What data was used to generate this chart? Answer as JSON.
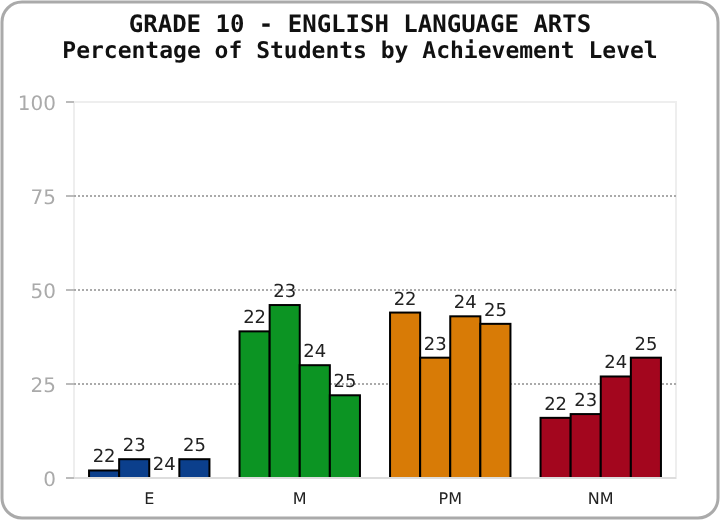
{
  "chart_data": {
    "type": "bar",
    "title": "GRADE 10 - ENGLISH LANGUAGE ARTS",
    "subtitle": "Percentage of Students by Achievement Level",
    "categories": [
      "E",
      "M",
      "PM",
      "NM"
    ],
    "series": [
      {
        "name": "22",
        "colors": [
          "#0b3f8c",
          "#0c9423",
          "#d87b06",
          "#a3061e"
        ],
        "values": [
          2,
          39,
          44,
          16
        ]
      },
      {
        "name": "23",
        "colors": [
          "#0b3f8c",
          "#0c9423",
          "#d87b06",
          "#a3061e"
        ],
        "values": [
          5,
          46,
          32,
          17
        ]
      },
      {
        "name": "24",
        "colors": [
          "#0b3f8c",
          "#0c9423",
          "#d87b06",
          "#a3061e"
        ],
        "values": [
          0,
          30,
          43,
          27
        ]
      },
      {
        "name": "25",
        "colors": [
          "#0b3f8c",
          "#0c9423",
          "#d87b06",
          "#a3061e"
        ],
        "values": [
          5,
          22,
          41,
          32
        ]
      }
    ],
    "ylim": [
      0,
      100
    ],
    "yticks": [
      0,
      25,
      50,
      75,
      100
    ],
    "grid": "y"
  }
}
